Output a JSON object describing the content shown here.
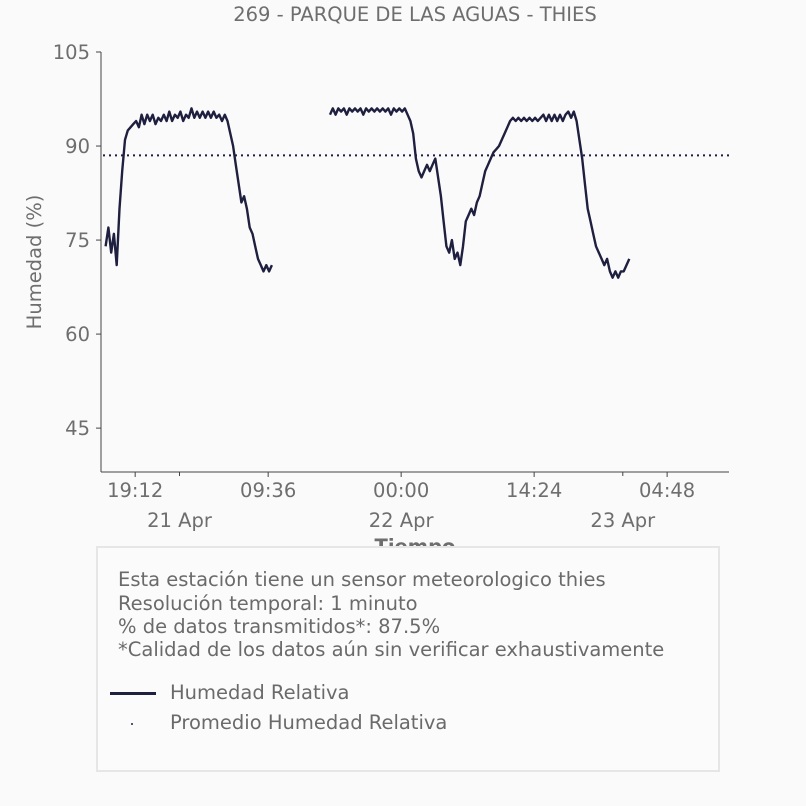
{
  "chart_data": {
    "type": "line",
    "title": "269 - PARQUE DE LAS AGUAS - THIES",
    "xlabel": "Tiempo",
    "ylabel": "Humedad (%)",
    "ylim": [
      38,
      105
    ],
    "yticks": [
      45,
      60,
      75,
      90,
      105
    ],
    "xlim": [
      -0.5,
      67.5
    ],
    "xticks": [
      {
        "x": 3.2,
        "label": "19:12",
        "sublabel": "21 Apr"
      },
      {
        "x": 17.6,
        "label": "09:36",
        "sublabel": ""
      },
      {
        "x": 32.0,
        "label": "00:00",
        "sublabel": "22 Apr"
      },
      {
        "x": 46.4,
        "label": "14:24",
        "sublabel": ""
      },
      {
        "x": 60.8,
        "label": "04:48",
        "sublabel": "23 Apr"
      }
    ],
    "date_labels": [
      {
        "x": 8.0,
        "label": "21 Apr"
      },
      {
        "x": 32.0,
        "label": "22 Apr"
      },
      {
        "x": 56.0,
        "label": "23 Apr"
      }
    ],
    "minor_xticks": [
      8.0,
      56.0
    ],
    "grid": false,
    "series": [
      {
        "name": "Humedad Relativa",
        "color": "#1f1f3f",
        "style": "solid",
        "segments": [
          [
            [
              0.0,
              74
            ],
            [
              0.3,
              77
            ],
            [
              0.6,
              73
            ],
            [
              0.9,
              76
            ],
            [
              1.2,
              71
            ],
            [
              1.5,
              80
            ],
            [
              1.8,
              86
            ],
            [
              2.1,
              91
            ],
            [
              2.4,
              92.5
            ],
            [
              2.7,
              93
            ],
            [
              3.0,
              93.5
            ],
            [
              3.3,
              94
            ],
            [
              3.6,
              93
            ],
            [
              3.9,
              95
            ],
            [
              4.2,
              93.5
            ],
            [
              4.5,
              95
            ],
            [
              4.8,
              94
            ],
            [
              5.1,
              95
            ],
            [
              5.4,
              93.5
            ],
            [
              5.7,
              94.5
            ],
            [
              6.0,
              94
            ],
            [
              6.3,
              95
            ],
            [
              6.6,
              94
            ],
            [
              6.9,
              95.5
            ],
            [
              7.2,
              94
            ],
            [
              7.5,
              95
            ],
            [
              7.8,
              94.5
            ],
            [
              8.1,
              95.5
            ],
            [
              8.4,
              94
            ],
            [
              8.7,
              95
            ],
            [
              9.0,
              94.5
            ],
            [
              9.3,
              96
            ],
            [
              9.6,
              94.5
            ],
            [
              9.9,
              95.5
            ],
            [
              10.2,
              94.5
            ],
            [
              10.5,
              95.5
            ],
            [
              10.8,
              94.5
            ],
            [
              11.1,
              95.5
            ],
            [
              11.4,
              94.5
            ],
            [
              11.7,
              95.5
            ],
            [
              12.0,
              94.5
            ],
            [
              12.3,
              95
            ],
            [
              12.6,
              94
            ],
            [
              12.9,
              95
            ],
            [
              13.2,
              94
            ],
            [
              13.5,
              92
            ],
            [
              13.8,
              90
            ],
            [
              14.1,
              87
            ],
            [
              14.4,
              84
            ],
            [
              14.7,
              81
            ],
            [
              15.0,
              82
            ],
            [
              15.3,
              80
            ],
            [
              15.6,
              77
            ],
            [
              15.9,
              76
            ],
            [
              16.2,
              74
            ],
            [
              16.5,
              72
            ],
            [
              16.8,
              71
            ],
            [
              17.1,
              70
            ],
            [
              17.4,
              71
            ],
            [
              17.7,
              70
            ],
            [
              18.0,
              71
            ]
          ],
          [
            [
              24.3,
              95
            ],
            [
              24.6,
              96
            ],
            [
              24.9,
              95
            ],
            [
              25.2,
              96
            ],
            [
              25.5,
              95.5
            ],
            [
              25.8,
              96
            ],
            [
              26.1,
              95
            ],
            [
              26.4,
              96
            ],
            [
              26.7,
              95.5
            ],
            [
              27.0,
              96
            ],
            [
              27.3,
              95.5
            ],
            [
              27.6,
              96
            ],
            [
              27.9,
              95
            ],
            [
              28.2,
              96
            ],
            [
              28.5,
              95.5
            ],
            [
              28.8,
              96
            ],
            [
              29.1,
              95.5
            ],
            [
              29.4,
              96
            ],
            [
              29.7,
              95.5
            ],
            [
              30.0,
              96
            ],
            [
              30.3,
              95.5
            ],
            [
              30.6,
              96
            ],
            [
              30.9,
              95
            ],
            [
              31.2,
              96
            ],
            [
              31.5,
              95.5
            ],
            [
              31.8,
              96
            ],
            [
              32.1,
              95.5
            ],
            [
              32.4,
              96
            ],
            [
              32.7,
              95
            ],
            [
              33.0,
              94
            ],
            [
              33.3,
              92
            ],
            [
              33.6,
              88
            ],
            [
              33.9,
              86
            ],
            [
              34.2,
              85
            ],
            [
              34.5,
              86
            ],
            [
              34.8,
              87
            ],
            [
              35.1,
              86
            ],
            [
              35.4,
              87
            ],
            [
              35.7,
              88
            ],
            [
              36.0,
              85
            ],
            [
              36.3,
              82
            ],
            [
              36.6,
              78
            ],
            [
              36.9,
              74
            ],
            [
              37.2,
              73
            ],
            [
              37.5,
              75
            ],
            [
              37.8,
              72
            ],
            [
              38.1,
              73
            ],
            [
              38.4,
              71
            ],
            [
              38.7,
              74
            ],
            [
              39.0,
              78
            ],
            [
              39.3,
              79
            ],
            [
              39.6,
              80
            ],
            [
              39.9,
              79
            ],
            [
              40.2,
              81
            ],
            [
              40.5,
              82
            ],
            [
              40.8,
              84
            ],
            [
              41.1,
              86
            ],
            [
              41.4,
              87
            ],
            [
              41.7,
              88
            ],
            [
              42.0,
              89
            ],
            [
              42.3,
              89.5
            ],
            [
              42.6,
              90
            ],
            [
              42.9,
              91
            ],
            [
              43.2,
              92
            ],
            [
              43.5,
              93
            ],
            [
              43.8,
              94
            ],
            [
              44.1,
              94.5
            ],
            [
              44.4,
              94
            ],
            [
              44.7,
              94.5
            ],
            [
              45.0,
              94
            ],
            [
              45.3,
              94.5
            ],
            [
              45.6,
              94
            ],
            [
              45.9,
              94.5
            ],
            [
              46.2,
              94
            ],
            [
              46.5,
              94.5
            ],
            [
              46.8,
              94
            ],
            [
              47.1,
              94.5
            ],
            [
              47.4,
              95
            ],
            [
              47.7,
              94
            ],
            [
              48.0,
              95
            ],
            [
              48.3,
              94
            ],
            [
              48.6,
              95
            ],
            [
              48.9,
              94
            ],
            [
              49.2,
              95
            ],
            [
              49.5,
              94
            ],
            [
              49.8,
              95
            ],
            [
              50.1,
              95.5
            ],
            [
              50.4,
              94.5
            ],
            [
              50.7,
              95.5
            ],
            [
              51.0,
              94
            ],
            [
              51.3,
              91
            ],
            [
              51.6,
              88
            ],
            [
              51.9,
              84
            ],
            [
              52.2,
              80
            ],
            [
              52.5,
              78
            ],
            [
              52.8,
              76
            ],
            [
              53.1,
              74
            ],
            [
              53.4,
              73
            ],
            [
              53.7,
              72
            ],
            [
              54.0,
              71
            ],
            [
              54.3,
              72
            ],
            [
              54.6,
              70
            ],
            [
              54.9,
              69
            ],
            [
              55.2,
              70
            ],
            [
              55.5,
              69
            ],
            [
              55.8,
              70
            ],
            [
              56.1,
              70
            ],
            [
              56.4,
              71
            ],
            [
              56.7,
              72
            ]
          ]
        ]
      },
      {
        "name": "Promedio Humedad Relativa",
        "color": "#1f1f3f",
        "style": "dotted",
        "value": 88.5
      }
    ]
  },
  "info_box": {
    "lines": [
      "Esta estación tiene un sensor meteorologico thies",
      "Resolución temporal: 1 minuto",
      "% de datos transmitidos*: 87.5%",
      "*Calidad de los datos aún sin verificar exhaustivamente"
    ],
    "legend": [
      {
        "label": "Humedad Relativa",
        "kind": "line"
      },
      {
        "label": "Promedio Humedad Relativa",
        "kind": "dot"
      }
    ]
  }
}
